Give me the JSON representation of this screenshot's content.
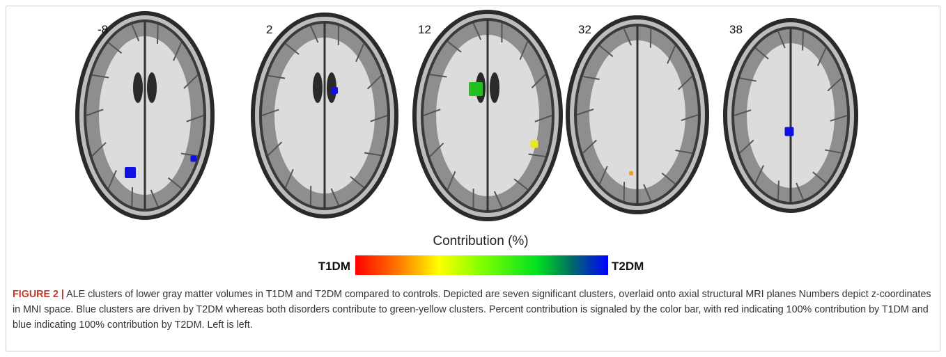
{
  "figure": {
    "slices": [
      {
        "label": "-8"
      },
      {
        "label": "2"
      },
      {
        "label": "12"
      },
      {
        "label": "32"
      },
      {
        "label": "38"
      }
    ],
    "colorbar": {
      "title": "Contribution (%)",
      "left_label": "T1DM",
      "right_label": "T2DM"
    },
    "caption": {
      "label": "FIGURE 2 |",
      "text": "ALE clusters of lower gray matter volumes in T1DM and T2DM compared to controls. Depicted are seven significant clusters, overlaid onto axial structural MRI planes Numbers depict z-coordinates in MNI space. Blue clusters are driven by T2DM whereas both disorders contribute to green-yellow clusters. Percent contribution is signaled by the color bar, with red indicating 100% contribution by T1DM and blue indicating 100% contribution by T2DM. Left is left."
    }
  }
}
